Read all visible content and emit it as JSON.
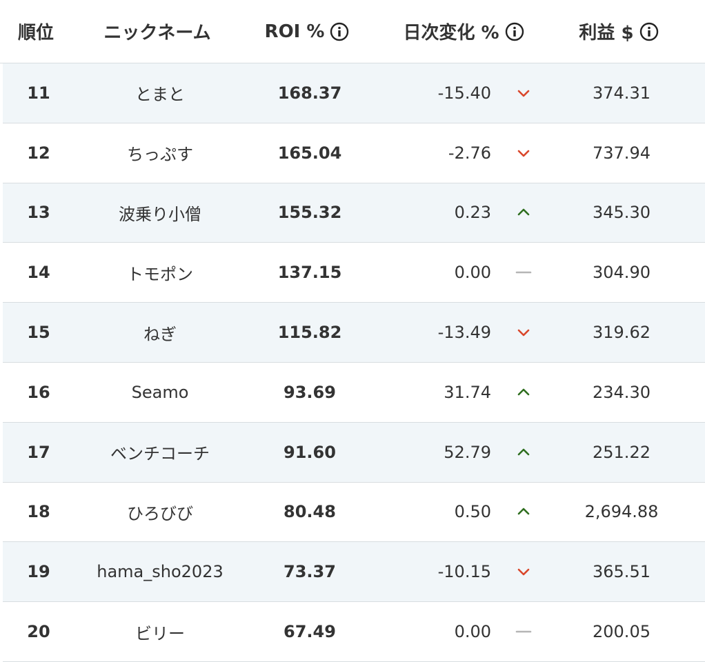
{
  "table": {
    "headers": [
      "順位",
      "ニックネーム",
      "ROI %",
      "日次変化 %",
      "利益 $"
    ],
    "rows": [
      [
        "11",
        "とまと",
        "168.37",
        "-15.40",
        "374.31"
      ],
      [
        "12",
        "ちっぷす",
        "165.04",
        "-2.76",
        "737.94"
      ],
      [
        "13",
        "波乗り小僧",
        "155.32",
        "0.23",
        "345.30"
      ],
      [
        "14",
        "トモポン",
        "137.15",
        "0.00",
        "304.90"
      ],
      [
        "15",
        "ねぎ",
        "115.82",
        "-13.49",
        "319.62"
      ],
      [
        "16",
        "Seamo",
        "93.69",
        "31.74",
        "234.30"
      ],
      [
        "17",
        "ベンチコーチ",
        "91.60",
        "52.79",
        "251.22"
      ],
      [
        "18",
        "ひろびび",
        "80.48",
        "0.50",
        "2,694.88"
      ],
      [
        "19",
        "hama_sho2023",
        "73.37",
        "-10.15",
        "365.51"
      ],
      [
        "20",
        "ビリー",
        "67.49",
        "0.00",
        "200.05"
      ]
    ]
  }
}
